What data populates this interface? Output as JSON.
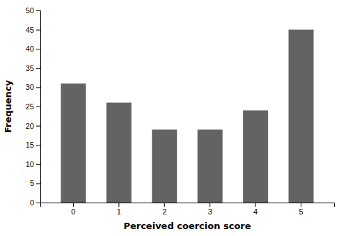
{
  "chart_data": {
    "type": "bar",
    "xlabel": "Perceived coercion score",
    "ylabel": "Frequency",
    "categories": [
      "0",
      "1",
      "2",
      "3",
      "4",
      "5"
    ],
    "values": [
      31,
      26,
      19,
      19,
      24,
      45
    ],
    "color": "#636363",
    "ylim": [
      0,
      50
    ],
    "yticks": [
      0,
      5,
      10,
      15,
      20,
      25,
      30,
      35,
      40,
      45,
      50
    ]
  }
}
